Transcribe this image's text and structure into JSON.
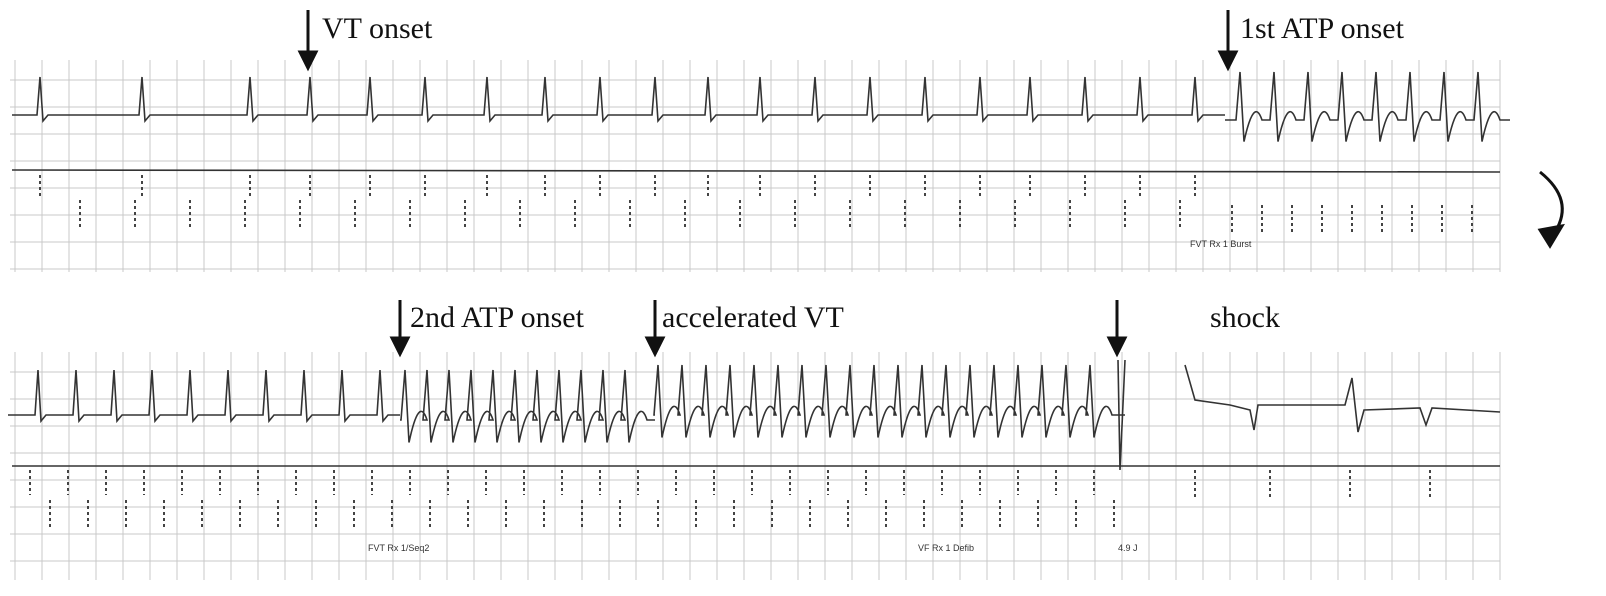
{
  "annotations": {
    "vt_onset": "VT onset",
    "atp1_onset": "1st ATP onset",
    "atp2_onset": "2nd ATP onset",
    "accelerated_vt": "accelerated VT",
    "shock": "shock"
  },
  "marker_labels": {
    "top_burst": "FVT Rx 1 Burst",
    "bottom_seq": "FVT Rx 1/Seq2",
    "bottom_defib": "VF Rx 1 Defib",
    "bottom_energy": "4.9 J"
  }
}
